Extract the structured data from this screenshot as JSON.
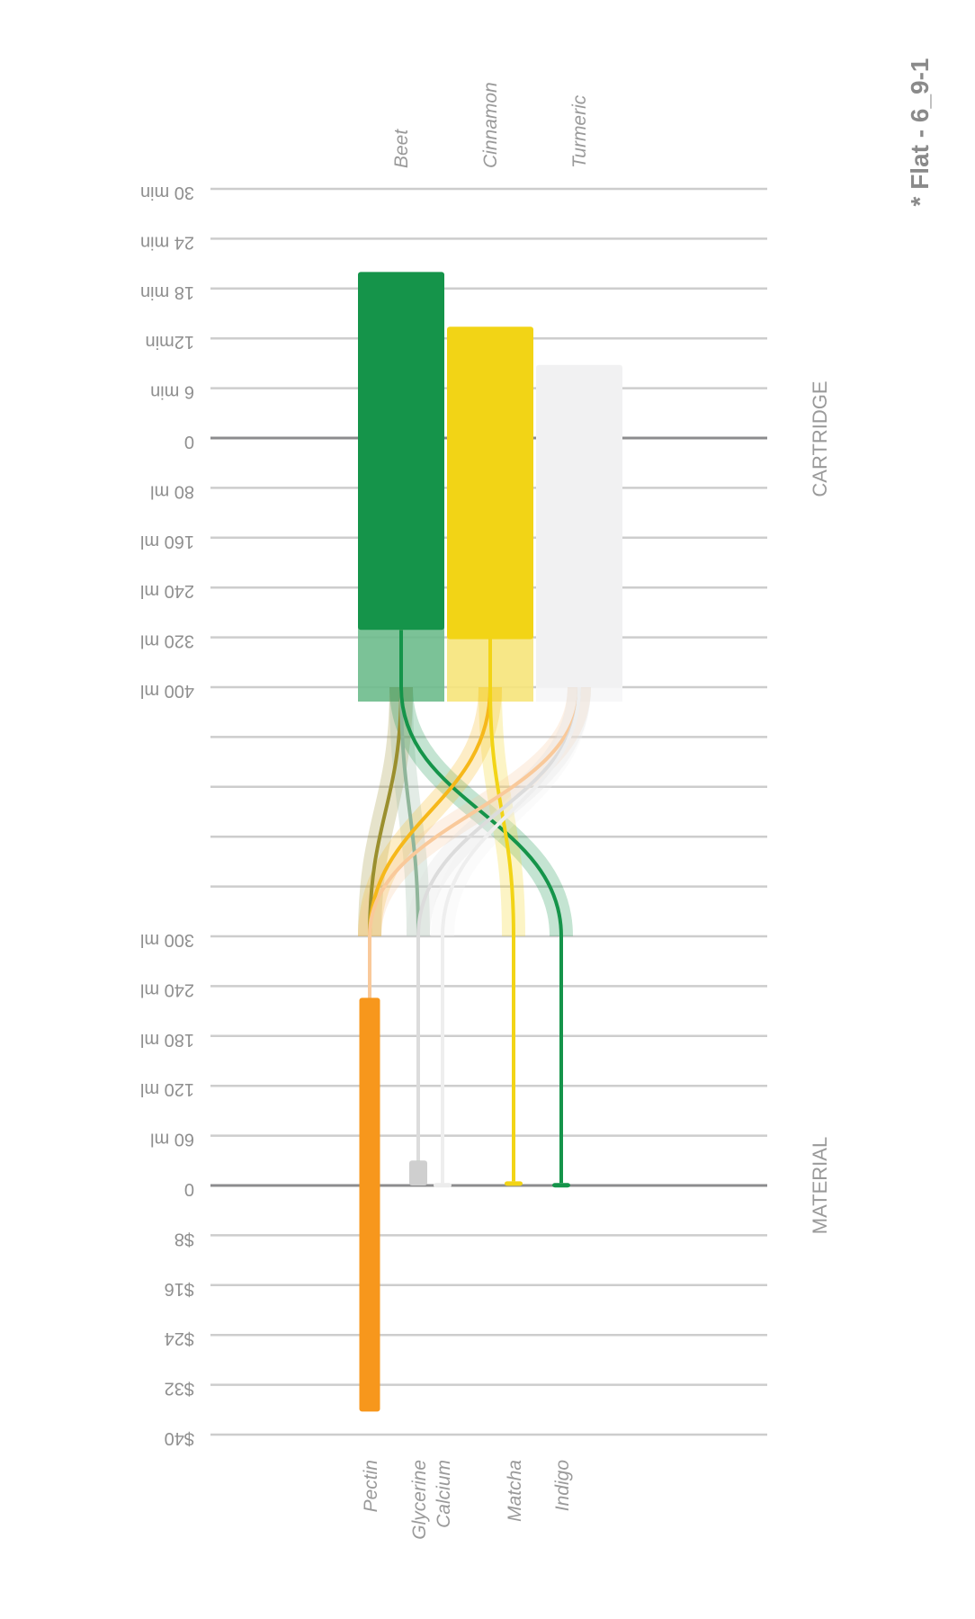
{
  "title": "* Flat - 6_9-1",
  "chart_data": {
    "type": "sankey",
    "title": "* Flat - 6_9-1",
    "sections": [
      "CARTRIDGE",
      "MATERIAL"
    ],
    "axis_labels": [
      "30 min",
      "24 min",
      "18 min",
      "12min",
      "6 min",
      "0",
      "80 ml",
      "160 ml",
      "240 ml",
      "320 ml",
      "400 ml",
      "",
      "",
      "",
      "",
      "300 ml",
      "240 ml",
      "180 ml",
      "120 ml",
      "60 ml",
      "0",
      "$8",
      "$16",
      "$24",
      "$32",
      "$40"
    ],
    "dark_gridlines": [
      5,
      20
    ],
    "cartridge": [
      {
        "name": "Beet",
        "time_min": 20,
        "volume_ml": 308,
        "color": "#15944a",
        "light": "#6dbb8c"
      },
      {
        "name": "Cinnamon",
        "time_min": 13.4,
        "volume_ml": 323,
        "color": "#f2d416",
        "light": "#f6e47a"
      },
      {
        "name": "Turmeric",
        "time_min": 8.8,
        "volume_ml": 400,
        "color": "#f1f1f2",
        "light": "#f6f6f7"
      }
    ],
    "material": [
      {
        "name": "Pectin",
        "volume_ml": 226,
        "cost_usd": 36.3,
        "color": "#f7971c"
      },
      {
        "name": "Glycerine",
        "volume_ml": 30,
        "cost_usd": 0,
        "color": "#cfcfcf"
      },
      {
        "name": "Calcium",
        "volume_ml": 3,
        "cost_usd": 0,
        "color": "#ececec"
      },
      {
        "name": "Matcha",
        "volume_ml": 5,
        "cost_usd": 0,
        "color": "#f2d416"
      },
      {
        "name": "Indigo",
        "volume_ml": 3,
        "cost_usd": 0,
        "color": "#15944a"
      }
    ],
    "flows": [
      {
        "source": "Beet",
        "target": "Pectin",
        "color": "#9a8f2e"
      },
      {
        "source": "Beet",
        "target": "Glycerine",
        "color": "#8fb59a"
      },
      {
        "source": "Beet",
        "target": "Indigo",
        "color": "#15944a"
      },
      {
        "source": "Cinnamon",
        "target": "Pectin",
        "color": "#f6b81a"
      },
      {
        "source": "Cinnamon",
        "target": "Matcha",
        "color": "#f2d416"
      },
      {
        "source": "Turmeric",
        "target": "Pectin",
        "color": "#f9c99a"
      },
      {
        "source": "Turmeric",
        "target": "Glycerine",
        "color": "#dcdcdc"
      },
      {
        "source": "Turmeric",
        "target": "Calcium",
        "color": "#eeeeee"
      }
    ]
  }
}
